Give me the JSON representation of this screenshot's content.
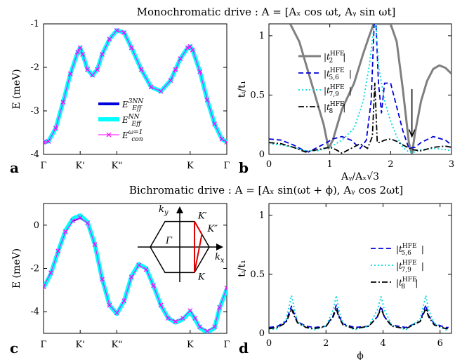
{
  "figure": {
    "title_top": "Monochromatic drive : A = [Aₓ cos ωt, Aᵧ sin ωt]",
    "title_bottom": "Bichromatic drive : A = [Aₓ sin(ωt + ϕ), Aᵧ cos 2ωt]"
  },
  "chart_data": [
    {
      "panel": "a",
      "type": "line",
      "ylabel": "E (meV)",
      "ylim": [
        -4,
        -1
      ],
      "yticks": [
        "-1",
        "-2",
        "-3",
        "-4"
      ],
      "ytick_values": [
        -1,
        -2,
        -3,
        -4
      ],
      "categories": [
        "Γ",
        "K'",
        "K\"",
        "K",
        "Γ"
      ],
      "category_positions": [
        0,
        0.75,
        1.5,
        3.0,
        3.75
      ],
      "xlim": [
        0,
        3.75
      ],
      "series": [
        {
          "name": "E_Eff^3NN",
          "color": "#0000dd",
          "style": "solid",
          "x": [
            0,
            0.1,
            0.25,
            0.4,
            0.55,
            0.7,
            0.75,
            0.8,
            0.9,
            1.0,
            1.1,
            1.2,
            1.35,
            1.5,
            1.65,
            1.8,
            2.0,
            2.2,
            2.4,
            2.6,
            2.7,
            2.8,
            2.95,
            3.0,
            3.05,
            3.2,
            3.35,
            3.5,
            3.65,
            3.75
          ],
          "y": [
            -3.72,
            -3.7,
            -3.4,
            -2.8,
            -2.15,
            -1.65,
            -1.55,
            -1.7,
            -2.05,
            -2.18,
            -2.05,
            -1.7,
            -1.35,
            -1.15,
            -1.2,
            -1.55,
            -2.05,
            -2.45,
            -2.55,
            -2.3,
            -2.05,
            -1.8,
            -1.55,
            -1.52,
            -1.6,
            -2.1,
            -2.75,
            -3.3,
            -3.65,
            -3.72
          ]
        },
        {
          "name": "E_Eff^NN",
          "color": "#00ffff",
          "style": "thick",
          "x": [
            0,
            0.1,
            0.25,
            0.4,
            0.55,
            0.7,
            0.75,
            0.8,
            0.9,
            1.0,
            1.1,
            1.2,
            1.35,
            1.5,
            1.65,
            1.8,
            2.0,
            2.2,
            2.4,
            2.6,
            2.7,
            2.8,
            2.95,
            3.0,
            3.05,
            3.2,
            3.35,
            3.5,
            3.65,
            3.75
          ],
          "y": [
            -3.72,
            -3.7,
            -3.4,
            -2.8,
            -2.15,
            -1.65,
            -1.55,
            -1.7,
            -2.05,
            -2.18,
            -2.05,
            -1.7,
            -1.35,
            -1.15,
            -1.2,
            -1.55,
            -2.05,
            -2.45,
            -2.55,
            -2.3,
            -2.05,
            -1.8,
            -1.55,
            -1.52,
            -1.6,
            -2.1,
            -2.75,
            -3.3,
            -3.65,
            -3.72
          ]
        },
        {
          "name": "E_con^(ω=1)",
          "color": "#ff00ff",
          "style": "marker-x",
          "x": [
            0,
            0.1,
            0.25,
            0.4,
            0.55,
            0.7,
            0.75,
            0.8,
            0.9,
            1.0,
            1.1,
            1.2,
            1.35,
            1.5,
            1.65,
            1.8,
            2.0,
            2.2,
            2.4,
            2.6,
            2.7,
            2.8,
            2.95,
            3.0,
            3.05,
            3.2,
            3.35,
            3.5,
            3.65,
            3.75
          ],
          "y": [
            -3.72,
            -3.7,
            -3.4,
            -2.8,
            -2.15,
            -1.65,
            -1.55,
            -1.7,
            -2.05,
            -2.18,
            -2.05,
            -1.7,
            -1.35,
            -1.15,
            -1.2,
            -1.55,
            -2.05,
            -2.45,
            -2.55,
            -2.3,
            -2.05,
            -1.8,
            -1.55,
            -1.52,
            -1.6,
            -2.1,
            -2.75,
            -3.3,
            -3.65,
            -3.72
          ]
        }
      ],
      "legend": [
        {
          "label": "E_Eff^3NN",
          "main": "E",
          "sup": "3NN",
          "sub": "Eff",
          "color": "#0000dd"
        },
        {
          "label": "E_Eff^NN",
          "main": "E",
          "sup": "NN",
          "sub": "Eff",
          "color": "#00ffff"
        },
        {
          "label": "E_con^(ω=1)",
          "main": "E",
          "sup": "ω=1",
          "sub": "con",
          "color": "#ff00ff"
        }
      ],
      "legend_position": "bottom-right"
    },
    {
      "panel": "b",
      "type": "line",
      "xlabel": "Aᵧ/Aₓ√3",
      "ylabel": "tᵢ/t₁",
      "xlim": [
        0,
        3
      ],
      "ylim": [
        0,
        1.1
      ],
      "xticks": [
        0,
        1,
        2,
        3
      ],
      "yticks": [
        0,
        0.5,
        1
      ],
      "series": [
        {
          "name": "|t_2^HFE|",
          "color": "#808080",
          "style": "solid-thick",
          "x": [
            0.35,
            0.5,
            0.7,
            0.9,
            0.98,
            1.05,
            1.2,
            1.4,
            1.55,
            1.65,
            1.72,
            1.76,
            1.8,
            1.9,
            2.0,
            2.1,
            2.2,
            2.3,
            2.35,
            2.4,
            2.5,
            2.6,
            2.7,
            2.8,
            2.9,
            3.0
          ],
          "y": [
            1.1,
            0.95,
            0.6,
            0.25,
            0.05,
            0.12,
            0.38,
            0.6,
            0.85,
            1.0,
            1.1,
            1.1,
            1.1,
            1.1,
            1.1,
            0.95,
            0.55,
            0.1,
            0.0,
            0.18,
            0.45,
            0.62,
            0.72,
            0.75,
            0.73,
            0.68
          ]
        },
        {
          "name": "|t_5,6^HFE|",
          "color": "#0000dd",
          "style": "dashed",
          "x": [
            0,
            0.2,
            0.4,
            0.55,
            0.65,
            0.8,
            0.95,
            1.05,
            1.2,
            1.35,
            1.5,
            1.6,
            1.68,
            1.73,
            1.76,
            1.8,
            1.85,
            1.9,
            2.0,
            2.1,
            2.2,
            2.3,
            2.4,
            2.5,
            2.7,
            2.9,
            3.0
          ],
          "y": [
            0.13,
            0.12,
            0.08,
            0.04,
            0.02,
            0.06,
            0.1,
            0.13,
            0.15,
            0.12,
            0.05,
            0.12,
            0.45,
            1.1,
            1.1,
            0.6,
            0.35,
            0.6,
            0.6,
            0.4,
            0.2,
            0.05,
            0.06,
            0.1,
            0.15,
            0.12,
            0.08
          ]
        },
        {
          "name": "|t_7,9^HFE|",
          "color": "#00dddd",
          "style": "dotted",
          "x": [
            0,
            0.2,
            0.4,
            0.6,
            0.8,
            1.0,
            1.2,
            1.4,
            1.55,
            1.65,
            1.72,
            1.76,
            1.8,
            1.9,
            2.0,
            2.1,
            2.2,
            2.3,
            2.4,
            2.5,
            2.7,
            2.9,
            3.0
          ],
          "y": [
            0.09,
            0.08,
            0.06,
            0.03,
            0.03,
            0.06,
            0.12,
            0.22,
            0.45,
            0.75,
            1.05,
            1.1,
            0.75,
            0.45,
            0.28,
            0.15,
            0.06,
            0.02,
            0.02,
            0.04,
            0.05,
            0.04,
            0.03
          ]
        },
        {
          "name": "|t_8^HFE|",
          "color": "#000000",
          "style": "dashdot",
          "x": [
            0,
            0.2,
            0.4,
            0.6,
            0.8,
            1.0,
            1.1,
            1.2,
            1.35,
            1.5,
            1.62,
            1.7,
            1.74,
            1.78,
            1.82,
            1.9,
            2.0,
            2.1,
            2.2,
            2.35,
            2.5,
            2.7,
            2.9,
            3.0
          ],
          "y": [
            0.1,
            0.09,
            0.06,
            0.02,
            0.04,
            0.06,
            0.04,
            0.01,
            0.05,
            0.09,
            0.05,
            0.15,
            0.6,
            0.1,
            0.1,
            0.12,
            0.13,
            0.11,
            0.08,
            0.04,
            0.03,
            0.06,
            0.07,
            0.06
          ]
        }
      ],
      "legend": [
        {
          "label": "|t_2^HFE|",
          "sub": "2",
          "color": "#808080",
          "style": "solid-thick"
        },
        {
          "label": "|t_5,6^HFE|",
          "sub": "5,6",
          "color": "#0000dd",
          "style": "dashed"
        },
        {
          "label": "|t_7,9^HFE|",
          "sub": "7,9",
          "color": "#00dddd",
          "style": "dotted"
        },
        {
          "label": "|t_8^HFE|",
          "sub": "8",
          "color": "#000000",
          "style": "dashdot"
        }
      ],
      "legend_sup": "HFE",
      "legend_position": "left",
      "annotation": {
        "type": "arrow",
        "x": 2.35,
        "y_from": 0.55,
        "y_to": 0.15
      }
    },
    {
      "panel": "c",
      "type": "line",
      "ylabel": "E (meV)",
      "ylim": [
        -5,
        1
      ],
      "yticks": [
        "0",
        "-2",
        "-4"
      ],
      "ytick_values": [
        0,
        -2,
        -4
      ],
      "categories": [
        "Γ",
        "K'",
        "K\"",
        "K",
        "Γ"
      ],
      "category_positions": [
        0,
        0.75,
        1.5,
        3.0,
        3.75
      ],
      "xlim": [
        0,
        3.75
      ],
      "series": [
        {
          "name": "E_Eff^3NN",
          "color": "#0000dd",
          "style": "solid",
          "x": [
            0,
            0.15,
            0.3,
            0.45,
            0.6,
            0.75,
            0.9,
            1.05,
            1.2,
            1.35,
            1.5,
            1.65,
            1.8,
            1.95,
            2.1,
            2.25,
            2.4,
            2.55,
            2.7,
            2.85,
            3.0,
            3.1,
            3.2,
            3.35,
            3.5,
            3.6,
            3.75
          ],
          "y": [
            -2.85,
            -2.2,
            -1.2,
            -0.3,
            0.2,
            0.35,
            0.1,
            -0.9,
            -2.5,
            -3.7,
            -4.05,
            -3.5,
            -2.4,
            -1.85,
            -2.05,
            -2.8,
            -3.7,
            -4.3,
            -4.45,
            -4.3,
            -3.95,
            -4.3,
            -4.7,
            -4.9,
            -4.7,
            -3.8,
            -2.9
          ]
        },
        {
          "name": "E_Eff^NN",
          "color": "#00ffff",
          "style": "thick",
          "x": [
            0,
            0.15,
            0.3,
            0.45,
            0.6,
            0.75,
            0.9,
            1.05,
            1.2,
            1.35,
            1.5,
            1.65,
            1.8,
            1.95,
            2.1,
            2.25,
            2.4,
            2.55,
            2.7,
            2.85,
            3.0,
            3.1,
            3.2,
            3.35,
            3.5,
            3.6,
            3.75
          ],
          "y": [
            -2.9,
            -2.25,
            -1.2,
            -0.25,
            0.3,
            0.45,
            0.15,
            -0.9,
            -2.5,
            -3.7,
            -4.1,
            -3.5,
            -2.35,
            -1.8,
            -2.0,
            -2.8,
            -3.7,
            -4.3,
            -4.5,
            -4.35,
            -4.0,
            -4.35,
            -4.75,
            -4.95,
            -4.75,
            -3.85,
            -2.95
          ]
        },
        {
          "name": "E_con^(ω=1)",
          "color": "#ff00ff",
          "style": "marker-x",
          "x": [
            0,
            0.15,
            0.3,
            0.45,
            0.6,
            0.75,
            0.9,
            1.05,
            1.2,
            1.35,
            1.5,
            1.65,
            1.8,
            1.95,
            2.1,
            2.25,
            2.4,
            2.55,
            2.7,
            2.85,
            3.0,
            3.1,
            3.2,
            3.35,
            3.5,
            3.6,
            3.75
          ],
          "y": [
            -2.85,
            -2.2,
            -1.2,
            -0.3,
            0.2,
            0.35,
            0.1,
            -0.9,
            -2.5,
            -3.7,
            -4.05,
            -3.5,
            -2.4,
            -1.85,
            -2.05,
            -2.8,
            -3.7,
            -4.3,
            -4.45,
            -4.3,
            -3.95,
            -4.3,
            -4.7,
            -4.9,
            -4.7,
            -3.8,
            -2.9
          ]
        }
      ],
      "inset": {
        "type": "diagram",
        "labels": {
          "ky": "k",
          "ky_sub": "y",
          "kx": "k",
          "kx_sub": "x",
          "gamma": "Γ",
          "kp": "K′",
          "kpp": "K″",
          "k": "K"
        }
      }
    },
    {
      "panel": "d",
      "type": "line",
      "xlabel": "ϕ",
      "ylabel": "tᵢ/t₁",
      "xlim": [
        0,
        6.4
      ],
      "ylim": [
        0,
        1.1
      ],
      "xticks": [
        0,
        2,
        4,
        6
      ],
      "yticks": [
        0,
        0.5,
        1
      ],
      "series": [
        {
          "name": "|t_5,6^HFE|",
          "color": "#0000dd",
          "style": "dashed",
          "x": [
            0,
            0.3,
            0.6,
            0.7,
            0.79,
            0.88,
            1.0,
            1.3,
            1.6,
            2.0,
            2.25,
            2.36,
            2.45,
            2.6,
            3.0,
            3.5,
            3.8,
            3.93,
            4.05,
            4.3,
            4.8,
            5.3,
            5.5,
            5.5,
            5.6,
            5.8,
            6.2,
            6.3
          ],
          "y": [
            0.05,
            0.06,
            0.1,
            0.17,
            0.23,
            0.17,
            0.1,
            0.06,
            0.05,
            0.06,
            0.15,
            0.24,
            0.15,
            0.08,
            0.05,
            0.06,
            0.14,
            0.23,
            0.14,
            0.07,
            0.05,
            0.1,
            0.24,
            0.24,
            0.15,
            0.08,
            0.05,
            0.05
          ]
        },
        {
          "name": "|t_7,9^HFE|",
          "color": "#00dddd",
          "style": "dotted",
          "x": [
            0,
            0.3,
            0.6,
            0.7,
            0.79,
            0.88,
            1.0,
            1.3,
            1.6,
            2.0,
            2.25,
            2.36,
            2.45,
            2.6,
            3.0,
            3.5,
            3.8,
            3.93,
            4.05,
            4.3,
            4.8,
            5.3,
            5.5,
            5.6,
            5.8,
            6.2,
            6.3
          ],
          "y": [
            0.03,
            0.04,
            0.12,
            0.22,
            0.32,
            0.22,
            0.1,
            0.05,
            0.03,
            0.06,
            0.2,
            0.32,
            0.2,
            0.08,
            0.03,
            0.06,
            0.2,
            0.31,
            0.2,
            0.07,
            0.03,
            0.12,
            0.32,
            0.2,
            0.08,
            0.03,
            0.03
          ]
        },
        {
          "name": "|t_8^HFE|",
          "color": "#000000",
          "style": "dashdot",
          "x": [
            0,
            0.3,
            0.6,
            0.7,
            0.79,
            0.88,
            1.0,
            1.3,
            1.6,
            2.0,
            2.25,
            2.36,
            2.45,
            2.6,
            3.0,
            3.5,
            3.8,
            3.93,
            4.05,
            4.3,
            4.8,
            5.3,
            5.5,
            5.6,
            5.8,
            6.2,
            6.3
          ],
          "y": [
            0.04,
            0.05,
            0.09,
            0.15,
            0.21,
            0.15,
            0.09,
            0.05,
            0.04,
            0.06,
            0.14,
            0.21,
            0.14,
            0.07,
            0.04,
            0.06,
            0.14,
            0.21,
            0.14,
            0.06,
            0.04,
            0.1,
            0.21,
            0.14,
            0.07,
            0.04,
            0.04
          ]
        }
      ],
      "legend": [
        {
          "label": "|t_5,6^HFE|",
          "sub": "5,6",
          "color": "#0000dd",
          "style": "dashed"
        },
        {
          "label": "|t_7,9^HFE|",
          "sub": "7,9",
          "color": "#00dddd",
          "style": "dotted"
        },
        {
          "label": "|t_8^HFE|",
          "sub": "8",
          "color": "#000000",
          "style": "dashdot"
        }
      ],
      "legend_sup": "HFE",
      "legend_position": "right"
    }
  ]
}
